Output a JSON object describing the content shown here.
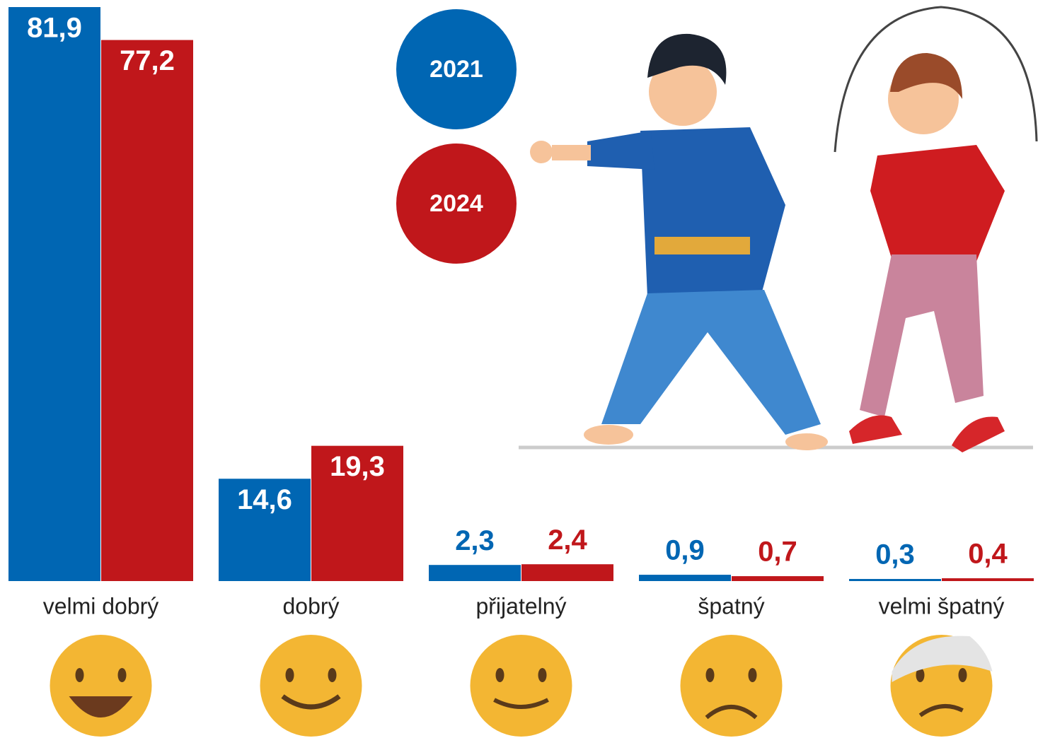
{
  "chart_data": {
    "type": "bar",
    "categories": [
      "velmi dobrý",
      "dobrý",
      "přijatelný",
      "špatný",
      "velmi špatný"
    ],
    "series": [
      {
        "name": "2021",
        "color": "#0066b3",
        "values": [
          81.9,
          14.6,
          2.3,
          0.9,
          0.3
        ],
        "value_labels": [
          "81,9",
          "14,6",
          "2,3",
          "0,9",
          "0,3"
        ]
      },
      {
        "name": "2024",
        "color": "#c0171b",
        "values": [
          77.2,
          19.3,
          2.4,
          0.7,
          0.4
        ],
        "value_labels": [
          "77,2",
          "19,3",
          "2,4",
          "0,7",
          "0,4"
        ]
      }
    ]
  }
}
